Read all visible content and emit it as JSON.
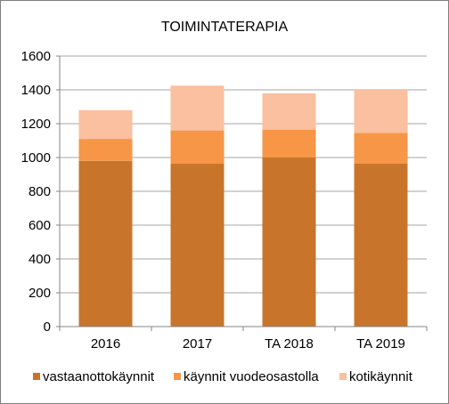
{
  "chart_data": {
    "type": "bar",
    "stacked": true,
    "title": "TOIMINTATERAPIA",
    "xlabel": "",
    "ylabel": "",
    "categories": [
      "2016",
      "2017",
      "TA 2018",
      "TA 2019"
    ],
    "series": [
      {
        "name": "vastaanottokäynnit",
        "values": [
          980,
          965,
          1000,
          965
        ],
        "color": "#c8752b"
      },
      {
        "name": "käynnit vuodeosastolla",
        "values": [
          130,
          195,
          165,
          180
        ],
        "color": "#f79646"
      },
      {
        "name": "kotikäynnit",
        "values": [
          170,
          265,
          215,
          255
        ],
        "color": "#fac09f"
      }
    ],
    "ylim": [
      0,
      1600
    ],
    "yticks": [
      "0",
      "200",
      "400",
      "600",
      "800",
      "1000",
      "1200",
      "1400",
      "1600"
    ],
    "grid": true,
    "legend": "bottom",
    "colors": {
      "grid": "#a6a6a6",
      "axis": "#868686",
      "frame": "#7f7f7f"
    }
  }
}
